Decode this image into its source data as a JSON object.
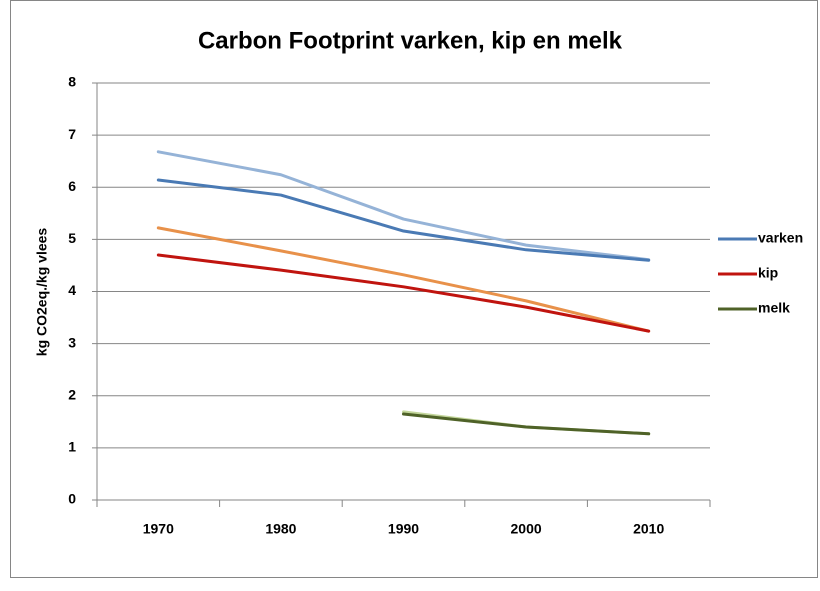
{
  "chart_data": {
    "type": "line",
    "title": "Carbon Footprint varken, kip en melk",
    "y_label": "kg CO2eq./kg vlees",
    "categories": [
      "1970",
      "1980",
      "1990",
      "2000",
      "2010"
    ],
    "series": [
      {
        "color": "#95b3d7",
        "values": [
          6.68,
          6.24,
          5.39,
          4.89,
          4.61
        ]
      },
      {
        "name": "varken",
        "color": "#4a7ab4",
        "values": [
          6.14,
          5.85,
          5.16,
          4.8,
          4.6
        ]
      },
      {
        "color": "#e8914a",
        "values": [
          5.22,
          4.78,
          4.32,
          3.82,
          3.24
        ]
      },
      {
        "name": "kip",
        "color": "#c0140f",
        "values": [
          4.7,
          4.41,
          4.09,
          3.7,
          3.24
        ]
      },
      {
        "color": "#c3d69b",
        "values": [
          null,
          null,
          1.69,
          1.4,
          1.27
        ]
      },
      {
        "name": "melk",
        "color": "#4f6228",
        "values": [
          null,
          null,
          1.65,
          1.4,
          1.27
        ]
      }
    ],
    "ylim": [
      0,
      8
    ],
    "yticks": [
      0,
      1,
      2,
      3,
      4,
      5,
      6,
      7,
      8
    ],
    "grid": true,
    "legend": "right"
  }
}
